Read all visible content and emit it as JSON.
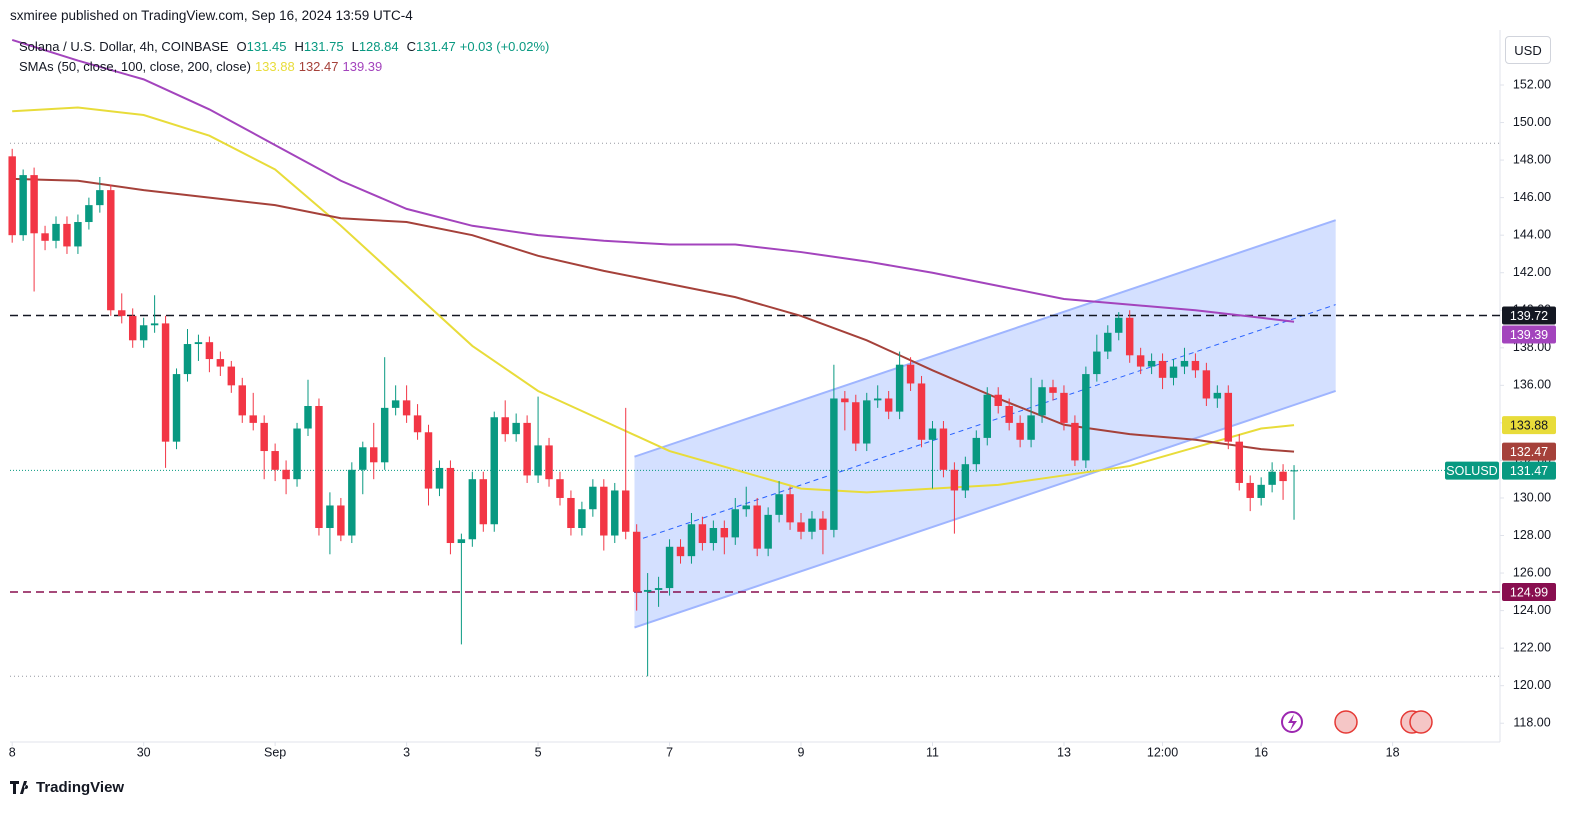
{
  "chart_data": {
    "type": "candlestick",
    "title": "sxmiree published on TradingView.com, Sep 16, 2024 13:59 UTC-4",
    "legend": {
      "symbol": "Solana / U.S. Dollar, 4h, COINBASE",
      "ohlc_labels": [
        "O",
        "H",
        "L",
        "C"
      ],
      "change": "+0.03 (+0.02%)",
      "indicator": "SMAs (50, close, 100, close, 200, close)"
    },
    "ticker": "SOLUSD",
    "currency": "USD",
    "brand": "TradingView",
    "up_color": "#089981",
    "down_color": "#f23645",
    "xlim": [
      -0.2,
      135.8
    ],
    "ylim": [
      117,
      154.93
    ],
    "grid": false,
    "xticks": [
      {
        "value": 0,
        "label": "8"
      },
      {
        "value": 12,
        "label": "30"
      },
      {
        "value": 24,
        "label": "Sep"
      },
      {
        "value": 36,
        "label": "3"
      },
      {
        "value": 48,
        "label": "5"
      },
      {
        "value": 60,
        "label": "7"
      },
      {
        "value": 72,
        "label": "9"
      },
      {
        "value": 84,
        "label": "11"
      },
      {
        "value": 96,
        "label": "13"
      },
      {
        "value": 105,
        "label": "12:00"
      },
      {
        "value": 114,
        "label": "16"
      },
      {
        "value": 126,
        "label": "18"
      }
    ],
    "yticks": [
      {
        "value": 118,
        "label": "118.00"
      },
      {
        "value": 120,
        "label": "120.00"
      },
      {
        "value": 122,
        "label": "122.00"
      },
      {
        "value": 124,
        "label": "124.00"
      },
      {
        "value": 126,
        "label": "126.00"
      },
      {
        "value": 128,
        "label": "128.00"
      },
      {
        "value": 130,
        "label": "130.00"
      },
      {
        "value": 132,
        "label": "132.00"
      },
      {
        "value": 134,
        "label": "134.00"
      },
      {
        "value": 136,
        "label": "136.00"
      },
      {
        "value": 138,
        "label": "138.00"
      },
      {
        "value": 140,
        "label": "140.00"
      },
      {
        "value": 142,
        "label": "142.00"
      },
      {
        "value": 144,
        "label": "144.00"
      },
      {
        "value": 146,
        "label": "146.00"
      },
      {
        "value": 148,
        "label": "148.00"
      },
      {
        "value": 150,
        "label": "150.00"
      },
      {
        "value": 152,
        "label": "152.00"
      }
    ],
    "open": [
      148.2,
      144.0,
      147.2,
      144.1,
      143.7,
      144.6,
      143.4,
      144.7,
      145.6,
      146.4,
      140.0,
      139.7,
      138.4,
      139.2,
      139.3,
      133.0,
      136.6,
      138.2,
      138.3,
      137.4,
      137.0,
      136.0,
      134.4,
      134.0,
      132.5,
      131.5,
      131.0,
      133.7,
      134.9,
      128.4,
      129.6,
      128.0,
      131.5,
      132.7,
      131.9,
      134.8,
      135.2,
      134.4,
      133.5,
      130.5,
      131.6,
      127.6,
      127.8,
      131.0,
      128.6,
      134.3,
      133.4,
      134.0,
      131.2,
      132.8,
      131.0,
      130.0,
      128.4,
      129.4,
      130.6,
      128.0,
      130.4,
      128.2,
      125.0,
      125.1,
      125.2,
      127.4,
      126.9,
      128.6,
      127.6,
      128.4,
      127.9,
      129.4,
      129.6,
      127.3,
      129.1,
      130.2,
      128.7,
      128.2,
      128.9,
      128.3,
      135.3,
      135.1,
      132.9,
      135.2,
      135.3,
      134.6,
      137.1,
      136.1,
      133.1,
      133.7,
      131.5,
      130.4,
      131.8,
      133.2,
      135.5,
      134.9,
      134.0,
      133.1,
      134.4,
      135.9,
      135.6,
      134.0,
      132.0,
      136.6,
      137.8,
      138.8,
      139.6,
      137.6,
      137.0,
      137.3,
      136.4,
      137.0,
      137.3,
      136.8,
      135.3,
      135.6,
      133.0,
      130.8,
      130.0,
      130.7,
      131.4,
      131.45
    ],
    "high": [
      148.6,
      147.5,
      147.6,
      144.5,
      145.0,
      145.0,
      145.1,
      146.0,
      147.1,
      146.7,
      140.9,
      140.1,
      139.6,
      140.8,
      139.7,
      136.9,
      139.0,
      138.7,
      138.6,
      137.8,
      137.3,
      136.4,
      135.6,
      134.4,
      132.9,
      132.0,
      134.0,
      136.3,
      135.3,
      130.3,
      130.0,
      131.9,
      133.0,
      134.0,
      137.5,
      136.0,
      136.0,
      135.0,
      133.9,
      132.0,
      132.0,
      128.1,
      131.4,
      131.4,
      134.6,
      135.2,
      134.5,
      134.4,
      135.4,
      133.2,
      131.4,
      130.4,
      129.8,
      131.0,
      131.0,
      130.8,
      134.8,
      128.6,
      126.0,
      125.8,
      127.8,
      127.8,
      129.2,
      129.0,
      128.8,
      128.8,
      130.0,
      130.6,
      130.0,
      129.5,
      130.9,
      130.6,
      129.2,
      129.3,
      129.3,
      137.1,
      135.7,
      135.5,
      135.6,
      136.0,
      135.7,
      137.8,
      137.5,
      136.5,
      134.1,
      134.1,
      131.9,
      132.2,
      133.6,
      135.9,
      135.9,
      135.3,
      134.4,
      136.4,
      136.3,
      136.3,
      136.0,
      134.4,
      137.0,
      138.7,
      139.2,
      139.9,
      140.0,
      138.0,
      137.7,
      137.7,
      137.4,
      138.0,
      137.7,
      137.2,
      136.0,
      136.0,
      133.4,
      131.2,
      131.1,
      131.9,
      131.8,
      131.75
    ],
    "low": [
      143.6,
      143.7,
      141.0,
      143.2,
      143.3,
      143.0,
      143.0,
      144.3,
      145.2,
      139.7,
      139.3,
      138.0,
      138.0,
      138.8,
      131.6,
      132.6,
      136.2,
      137.3,
      136.7,
      136.5,
      135.6,
      134.0,
      133.6,
      131.0,
      130.9,
      130.2,
      130.6,
      133.3,
      128.0,
      127.0,
      127.7,
      127.6,
      130.2,
      131.0,
      131.5,
      134.4,
      134.0,
      133.1,
      129.6,
      130.1,
      127.0,
      122.2,
      127.4,
      128.2,
      128.2,
      133.0,
      133.0,
      130.8,
      130.8,
      130.6,
      129.6,
      128.0,
      128.0,
      129.0,
      127.2,
      127.6,
      127.8,
      124.0,
      120.5,
      124.2,
      124.8,
      126.5,
      126.5,
      127.2,
      127.2,
      127.0,
      127.5,
      129.0,
      126.9,
      126.9,
      128.7,
      128.3,
      127.8,
      127.8,
      127.0,
      127.9,
      133.6,
      132.5,
      132.5,
      134.8,
      134.2,
      134.2,
      135.7,
      132.7,
      130.5,
      131.1,
      128.1,
      130.0,
      131.4,
      132.8,
      134.5,
      133.6,
      132.7,
      132.7,
      134.0,
      135.2,
      133.6,
      131.7,
      131.6,
      136.2,
      137.4,
      138.4,
      137.2,
      136.6,
      136.6,
      135.8,
      136.0,
      136.6,
      136.4,
      134.9,
      134.8,
      132.6,
      130.4,
      129.3,
      129.6,
      130.3,
      129.9,
      128.84
    ],
    "close": [
      144.0,
      147.2,
      144.1,
      143.7,
      144.6,
      143.4,
      144.7,
      145.6,
      146.4,
      140.0,
      139.7,
      138.4,
      139.2,
      139.3,
      133.0,
      136.6,
      138.2,
      138.3,
      137.4,
      137.0,
      136.0,
      134.4,
      134.0,
      132.5,
      131.5,
      131.0,
      133.7,
      134.9,
      128.4,
      129.6,
      128.0,
      131.5,
      132.7,
      131.9,
      134.8,
      135.2,
      134.4,
      133.5,
      130.5,
      131.6,
      127.6,
      127.8,
      131.0,
      128.6,
      134.3,
      133.4,
      134.0,
      131.2,
      132.8,
      131.0,
      130.0,
      128.4,
      129.4,
      130.6,
      128.0,
      130.4,
      128.2,
      125.0,
      125.1,
      125.2,
      127.4,
      126.9,
      128.6,
      127.6,
      128.4,
      127.9,
      129.4,
      129.6,
      127.3,
      129.1,
      130.2,
      128.7,
      128.2,
      128.9,
      128.3,
      135.3,
      135.1,
      132.9,
      135.2,
      135.3,
      134.6,
      137.1,
      136.1,
      133.1,
      133.7,
      131.5,
      130.4,
      131.8,
      133.2,
      135.5,
      134.9,
      134.0,
      133.1,
      134.4,
      135.9,
      135.6,
      134.0,
      132.0,
      136.6,
      137.8,
      138.8,
      139.6,
      137.6,
      137.0,
      137.3,
      136.4,
      137.0,
      137.3,
      136.8,
      135.3,
      135.6,
      133.0,
      130.8,
      130.0,
      130.7,
      131.4,
      130.9,
      131.47
    ],
    "series": [
      {
        "color": "#e8dc3a",
        "x": [
          0,
          6,
          12,
          18,
          24,
          30,
          36,
          42,
          48,
          54,
          60,
          66,
          72,
          78,
          84,
          90,
          96,
          102,
          108,
          114,
          117
        ],
        "values": [
          150.6,
          150.8,
          150.4,
          149.3,
          147.5,
          144.5,
          141.3,
          138.1,
          135.7,
          134.1,
          132.5,
          131.5,
          130.5,
          130.3,
          130.5,
          130.7,
          131.2,
          131.7,
          132.7,
          133.7,
          133.88
        ]
      },
      {
        "color": "#a5413a",
        "x": [
          0,
          6,
          12,
          18,
          24,
          30,
          36,
          42,
          48,
          54,
          60,
          66,
          72,
          78,
          84,
          90,
          96,
          102,
          108,
          114,
          117
        ],
        "values": [
          147.0,
          146.9,
          146.4,
          146.0,
          145.6,
          144.9,
          144.7,
          144.0,
          142.9,
          142.1,
          141.4,
          140.7,
          139.7,
          138.4,
          136.8,
          135.3,
          133.9,
          133.4,
          133.1,
          132.6,
          132.47
        ]
      },
      {
        "color": "#a344bd",
        "x": [
          0,
          6,
          12,
          18,
          24,
          30,
          36,
          42,
          48,
          54,
          60,
          66,
          72,
          78,
          84,
          90,
          96,
          102,
          108,
          114,
          117
        ],
        "values": [
          154.4,
          153.3,
          152.3,
          150.7,
          148.8,
          146.9,
          145.4,
          144.5,
          144.0,
          143.7,
          143.5,
          143.5,
          143.1,
          142.6,
          142.0,
          141.3,
          140.6,
          140.3,
          140.0,
          139.6,
          139.39
        ]
      }
    ],
    "levels": [
      {
        "value": 139.72,
        "color": "#131722",
        "style": "dashed",
        "tag": true
      },
      {
        "value": 124.99,
        "color": "#880e4f",
        "style": "dashed",
        "tag": true
      },
      {
        "value": 148.9,
        "color": "#9598a1",
        "style": "dotted",
        "tag": false
      },
      {
        "value": 120.5,
        "color": "#9598a1",
        "style": "dotted",
        "tag": false
      }
    ],
    "channel": {
      "x": [
        56.8,
        120.8
      ],
      "upper": [
        132.2,
        144.8
      ],
      "middle": [
        127.7,
        140.3
      ],
      "lower": [
        123.1,
        135.7
      ],
      "fill": "rgba(41,98,255,0.2)",
      "edge": "#9fb5ff",
      "mid_color": "#2962ff"
    }
  }
}
